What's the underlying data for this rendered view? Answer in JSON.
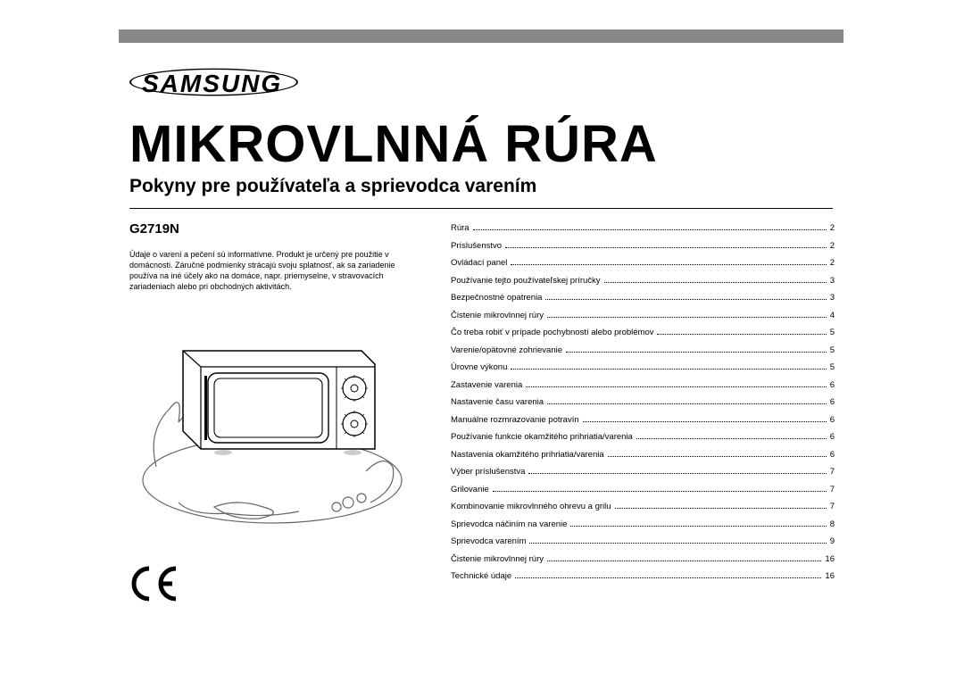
{
  "logo_text": "SAMSUNG",
  "title": "MIKROVLNNÁ RÚRA",
  "subtitle": "Pokyny pre používateľa a sprievodca varením",
  "model": "G2719N",
  "disclaimer": "Údaje o varení a pečení sú informatívne. Produkt je určený pre použitie v domácnosti. Záručné podmienky strácajú svoju splatnosť, ak sa zariadenie používa na iné účely ako na domáce, napr. priemyselne, v stravovacích zariadeniach alebo pri obchodných aktivitách.",
  "ce_mark": "CE",
  "toc": [
    {
      "label": "Rúra",
      "page": "2"
    },
    {
      "label": "Príslušenstvo",
      "page": "2"
    },
    {
      "label": "Ovládací panel",
      "page": "2"
    },
    {
      "label": "Používanie tejto používateľskej príručky",
      "page": "3"
    },
    {
      "label": "Bezpečnostné opatrenia",
      "page": "3"
    },
    {
      "label": "Čistenie mikrovlnnej rúry",
      "page": "4"
    },
    {
      "label": "Čo treba robiť v prípade pochybností alebo problémov",
      "page": "5"
    },
    {
      "label": "Varenie/opätovné zohrievanie",
      "page": "5"
    },
    {
      "label": "Úrovne výkonu",
      "page": "5"
    },
    {
      "label": "Zastavenie varenia",
      "page": "6"
    },
    {
      "label": "Nastavenie času varenia",
      "page": "6"
    },
    {
      "label": "Manuálne rozmrazovanie potravín",
      "page": "6"
    },
    {
      "label": "Používanie funkcie okamžitého prihriatia/varenia",
      "page": "6"
    },
    {
      "label": "Nastavenia okamžitého prihriatia/varenia",
      "page": "6"
    },
    {
      "label": "Výber príslušenstva",
      "page": "7"
    },
    {
      "label": "Grilovanie",
      "page": "7"
    },
    {
      "label": "Kombinovanie mikrovlnného ohrevu a grilu",
      "page": "7"
    },
    {
      "label": "Sprievodca náčiním na varenie",
      "page": "8"
    },
    {
      "label": "Sprievodca varením",
      "page": "9"
    },
    {
      "label": "Čistenie mikrovlnnej rúry",
      "page": "16"
    },
    {
      "label": "Technické údaje",
      "page": "16"
    }
  ],
  "colors": {
    "border_bar": "#888888",
    "text": "#000000",
    "background": "#ffffff"
  },
  "typography": {
    "title_fontsize": 58,
    "subtitle_fontsize": 21,
    "model_fontsize": 15,
    "body_fontsize": 9.5
  }
}
